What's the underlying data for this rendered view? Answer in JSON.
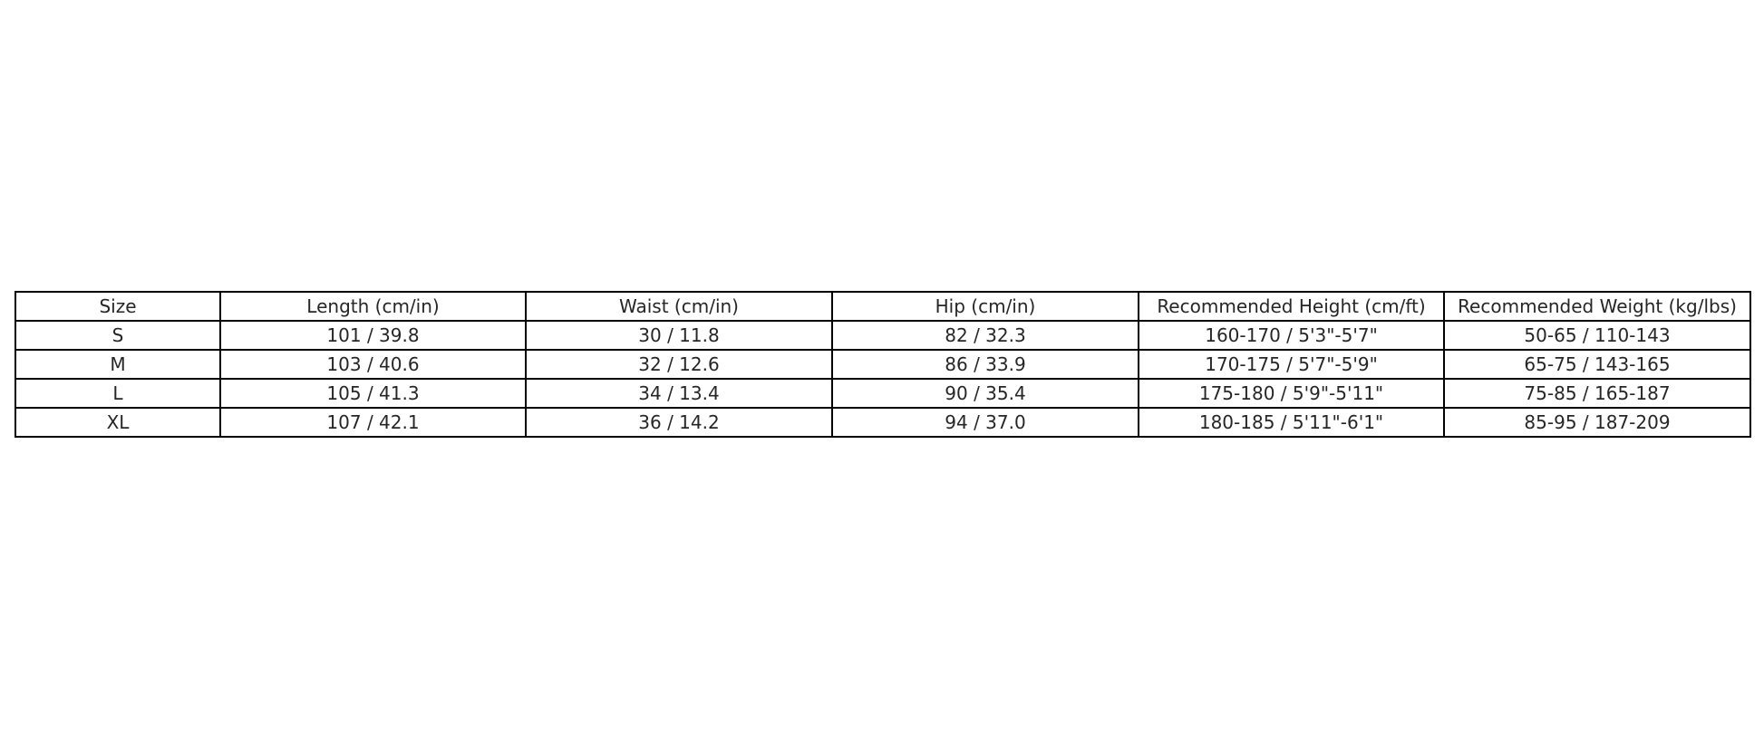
{
  "table": {
    "headers": [
      "Size",
      "Length (cm/in)",
      "Waist (cm/in)",
      "Hip (cm/in)",
      "Recommended Height (cm/ft)",
      "Recommended Weight (kg/lbs)"
    ],
    "rows": [
      [
        "S",
        "101 / 39.8",
        "30 / 11.8",
        "82 / 32.3",
        "160-170 / 5'3\"-5'7\"",
        "50-65 / 110-143"
      ],
      [
        "M",
        "103 / 40.6",
        "32 / 12.6",
        "86 / 33.9",
        "170-175 / 5'7\"-5'9\"",
        "65-75 / 143-165"
      ],
      [
        "L",
        "105 / 41.3",
        "34 / 13.4",
        "90 / 35.4",
        "175-180 / 5'9\"-5'11\"",
        "75-85 / 165-187"
      ],
      [
        "XL",
        "107 / 42.1",
        "36 / 14.2",
        "94 / 37.0",
        "180-185 / 5'11\"-6'1\"",
        "85-95 / 187-209"
      ]
    ]
  }
}
